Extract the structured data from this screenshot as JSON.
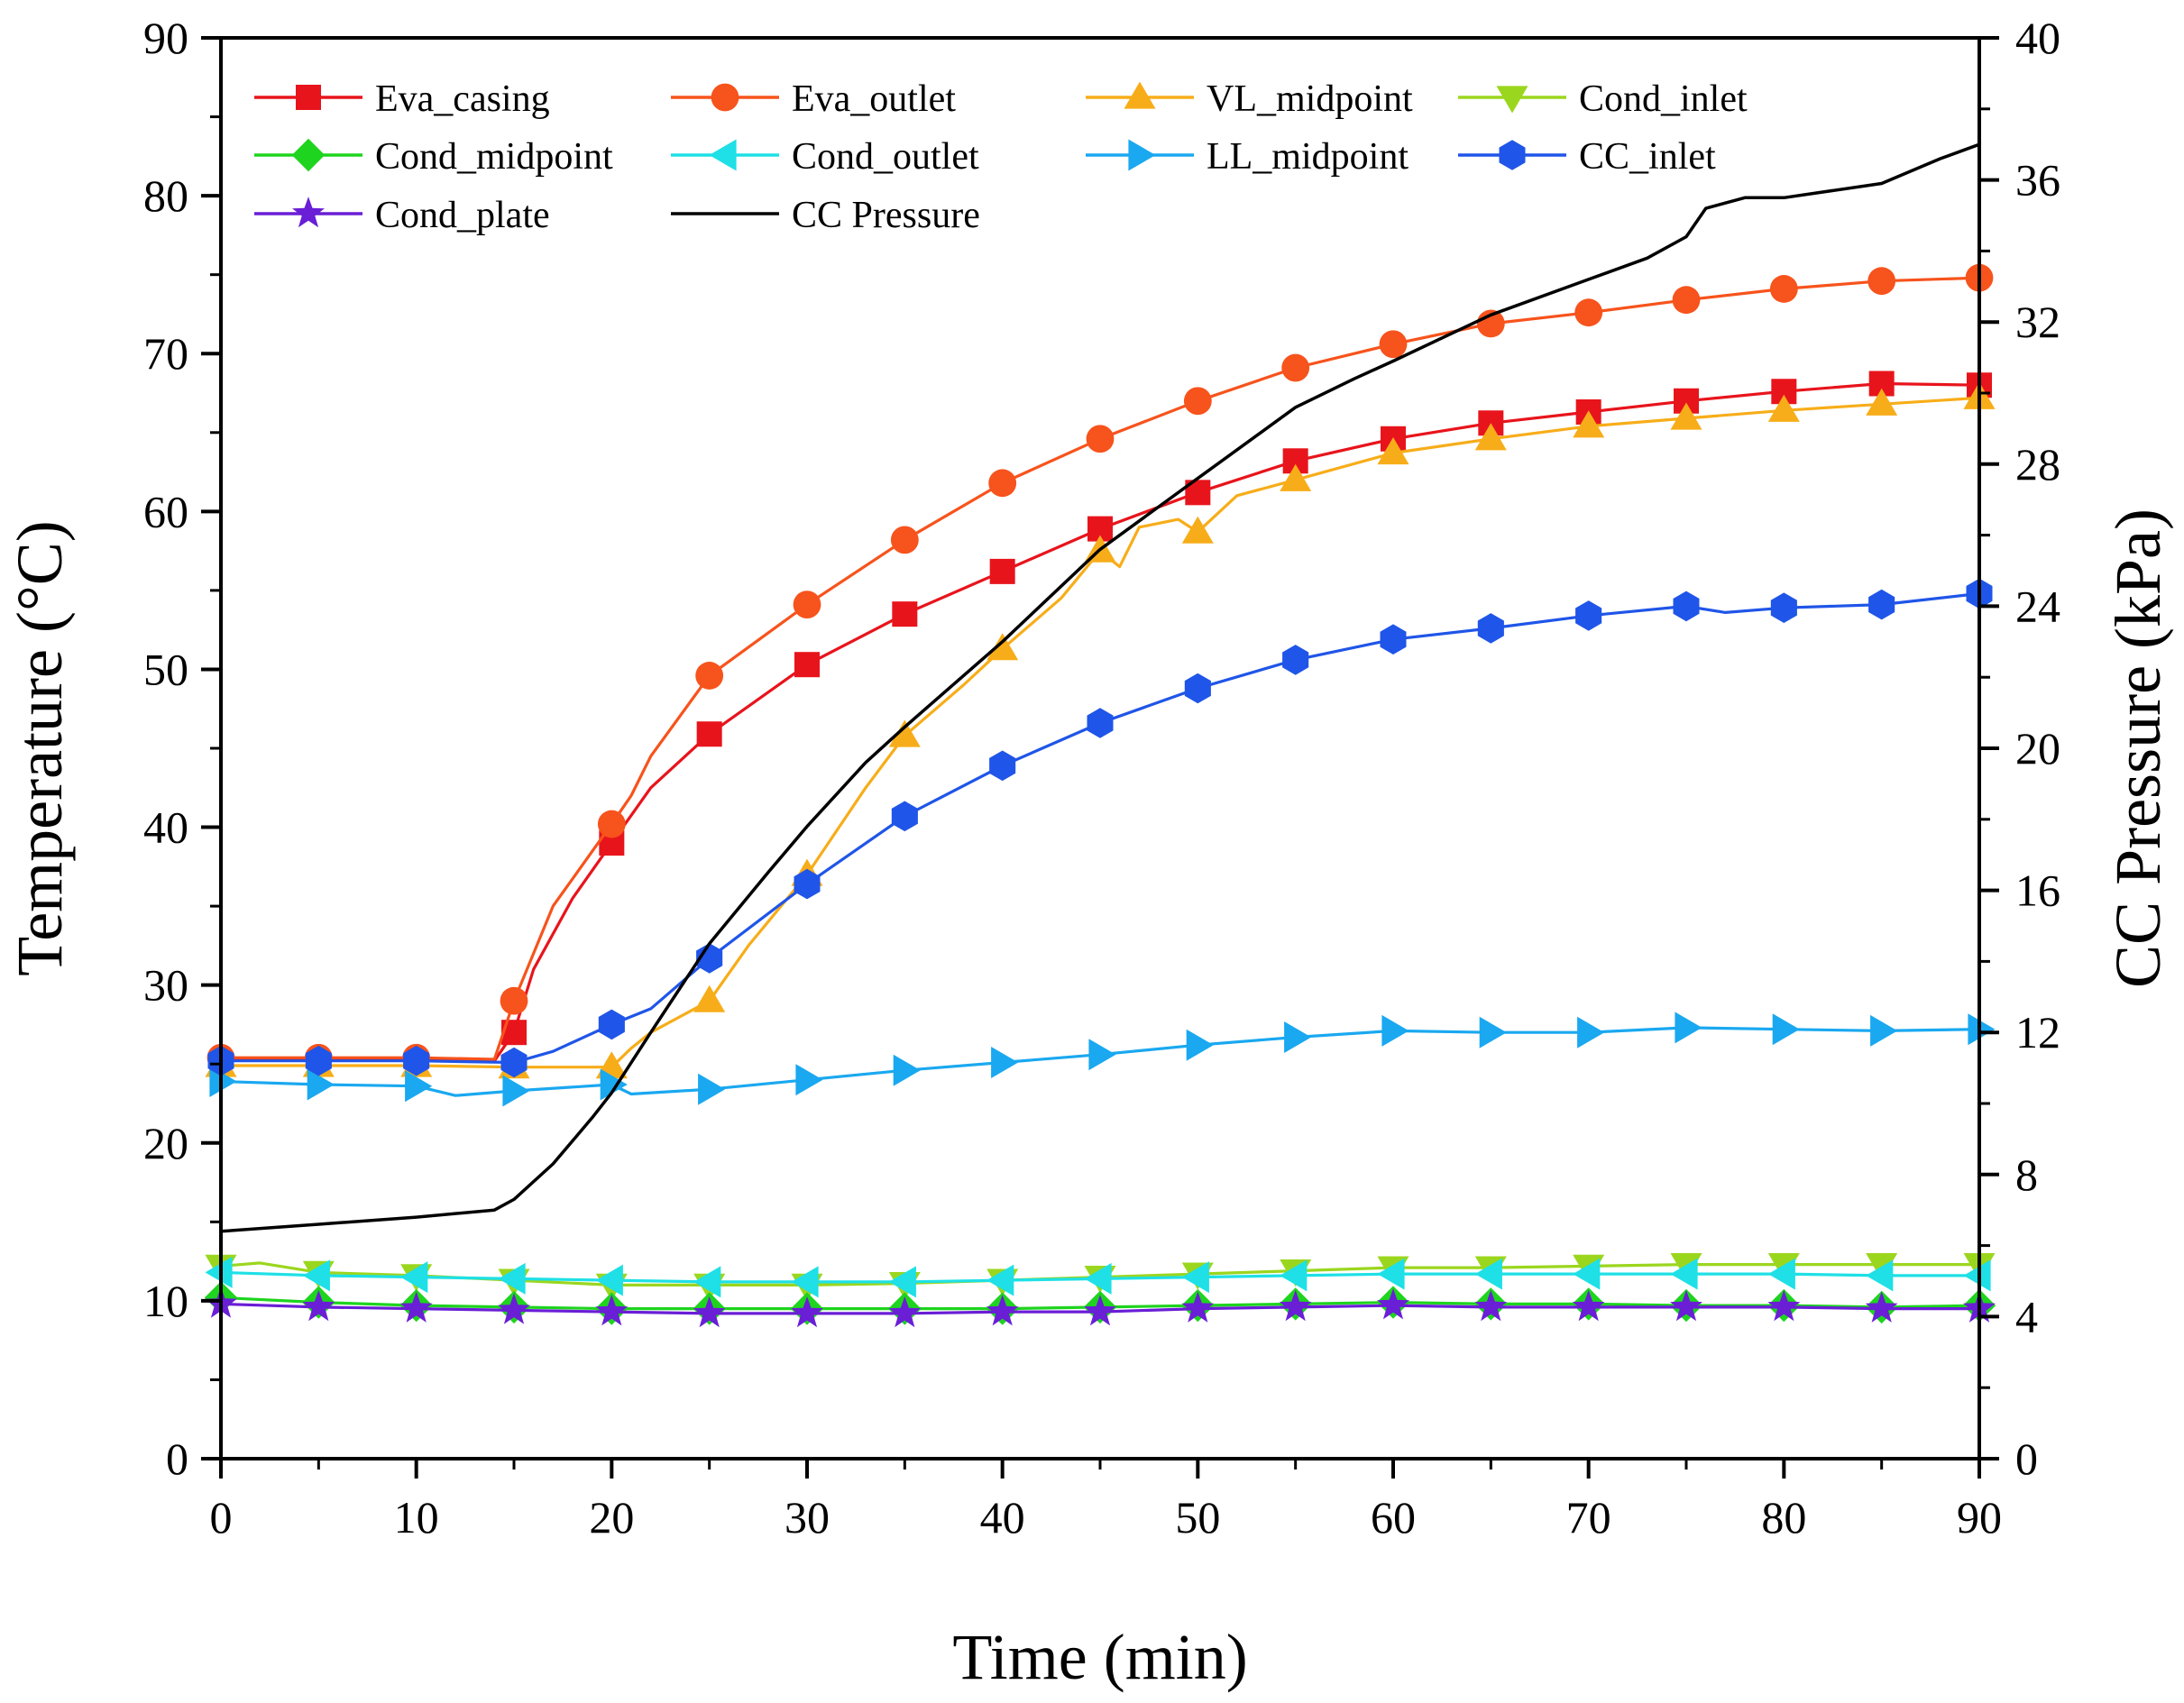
{
  "chart_data": {
    "type": "line",
    "title": "",
    "xlabel": "Time (min)",
    "ylabel": "Temperature (°C)",
    "y2label": "CC Pressure (kPa)",
    "xlim": [
      0,
      90
    ],
    "ylim": [
      0,
      90
    ],
    "y2lim": [
      0,
      40
    ],
    "x_ticks": [
      "0",
      "10",
      "20",
      "30",
      "40",
      "50",
      "60",
      "70",
      "80",
      "90"
    ],
    "y_ticks": [
      "0",
      "10",
      "20",
      "30",
      "40",
      "50",
      "60",
      "70",
      "80",
      "90"
    ],
    "y2_ticks": [
      "0",
      "4",
      "8",
      "12",
      "16",
      "20",
      "24",
      "28",
      "32",
      "36",
      "40"
    ],
    "grid": false,
    "legend_position": "top-left",
    "series": [
      {
        "name": "Eva_casing",
        "color": "#e8141c",
        "marker": "square",
        "axis": "left",
        "x": [
          0,
          5,
          10,
          14,
          15,
          16,
          18,
          20,
          22,
          25,
          30,
          35,
          40,
          45,
          50,
          55,
          60,
          65,
          70,
          75,
          80,
          85,
          90
        ],
        "y": [
          25.3,
          25.3,
          25.3,
          25.2,
          27.0,
          31.0,
          35.5,
          39.0,
          42.5,
          45.9,
          50.3,
          53.5,
          56.2,
          58.9,
          61.2,
          63.2,
          64.6,
          65.6,
          66.3,
          67.0,
          67.6,
          68.1,
          68.0
        ],
        "marker_x": [
          15,
          20,
          25,
          30,
          35,
          40,
          45,
          50,
          55,
          60,
          65,
          70,
          75,
          80,
          85,
          90
        ]
      },
      {
        "name": "Eva_outlet",
        "color": "#f7531c",
        "marker": "circle",
        "axis": "left",
        "x": [
          0,
          5,
          10,
          14,
          15,
          17,
          20,
          21,
          22,
          25,
          30,
          35,
          40,
          45,
          50,
          55,
          60,
          65,
          70,
          75,
          80,
          85,
          90
        ],
        "y": [
          25.4,
          25.4,
          25.4,
          25.3,
          29.0,
          35.0,
          40.2,
          42.0,
          44.5,
          49.6,
          54.1,
          58.2,
          61.8,
          64.6,
          67.0,
          69.1,
          70.6,
          71.9,
          72.6,
          73.4,
          74.1,
          74.6,
          74.8
        ],
        "marker_x": [
          0,
          5,
          10,
          15,
          20,
          25,
          30,
          35,
          40,
          45,
          50,
          55,
          60,
          65,
          70,
          75,
          80,
          85,
          90
        ]
      },
      {
        "name": "VL_midpoint",
        "color": "#f7ad19",
        "marker": "triangle-up",
        "axis": "left",
        "x": [
          0,
          5,
          10,
          15,
          19,
          20,
          21,
          22,
          25,
          27,
          30,
          33,
          35,
          38,
          40,
          43,
          45,
          46,
          47,
          49,
          50,
          52,
          55,
          60,
          65,
          70,
          75,
          80,
          85,
          90
        ],
        "y": [
          24.9,
          24.9,
          24.9,
          24.8,
          24.8,
          24.8,
          26.0,
          27.0,
          29.0,
          32.5,
          37.0,
          42.5,
          45.8,
          49.0,
          51.3,
          54.5,
          57.5,
          56.5,
          59.0,
          59.5,
          58.7,
          61.0,
          62.0,
          63.7,
          64.6,
          65.4,
          65.9,
          66.4,
          66.8,
          67.2
        ],
        "marker_x": [
          0,
          5,
          10,
          15,
          20,
          25,
          30,
          35,
          40,
          45,
          50,
          55,
          60,
          65,
          70,
          75,
          80,
          85,
          90
        ]
      },
      {
        "name": "Cond_inlet",
        "color": "#9bd61e",
        "marker": "triangle-down",
        "axis": "left",
        "x": [
          0,
          2,
          5,
          10,
          15,
          20,
          25,
          30,
          35,
          40,
          45,
          50,
          55,
          60,
          65,
          70,
          75,
          80,
          85,
          90
        ],
        "y": [
          12.2,
          12.4,
          11.8,
          11.6,
          11.3,
          11.0,
          11.0,
          11.0,
          11.1,
          11.3,
          11.5,
          11.7,
          11.9,
          12.1,
          12.1,
          12.2,
          12.3,
          12.3,
          12.3,
          12.3
        ],
        "marker_x": [
          0,
          5,
          10,
          15,
          20,
          25,
          30,
          35,
          40,
          45,
          50,
          55,
          60,
          65,
          70,
          75,
          80,
          85,
          90
        ]
      },
      {
        "name": "Cond_midpoint",
        "color": "#1ed41e",
        "marker": "diamond",
        "axis": "left",
        "x": [
          0,
          5,
          10,
          15,
          20,
          25,
          30,
          35,
          40,
          45,
          50,
          55,
          60,
          65,
          70,
          75,
          80,
          85,
          90
        ],
        "y": [
          10.2,
          9.9,
          9.7,
          9.6,
          9.5,
          9.5,
          9.5,
          9.5,
          9.5,
          9.6,
          9.7,
          9.8,
          9.9,
          9.8,
          9.8,
          9.7,
          9.7,
          9.6,
          9.7
        ],
        "marker_x": [
          0,
          5,
          10,
          15,
          20,
          25,
          30,
          35,
          40,
          45,
          50,
          55,
          60,
          65,
          70,
          75,
          80,
          85,
          90
        ]
      },
      {
        "name": "Cond_outlet",
        "color": "#1ee0e6",
        "marker": "triangle-left",
        "axis": "left",
        "x": [
          0,
          5,
          10,
          15,
          20,
          25,
          30,
          35,
          40,
          45,
          50,
          55,
          60,
          65,
          70,
          75,
          80,
          85,
          90
        ],
        "y": [
          11.8,
          11.6,
          11.5,
          11.4,
          11.3,
          11.2,
          11.2,
          11.2,
          11.3,
          11.4,
          11.5,
          11.6,
          11.7,
          11.7,
          11.7,
          11.7,
          11.7,
          11.6,
          11.6
        ],
        "marker_x": [
          0,
          5,
          10,
          15,
          20,
          25,
          30,
          35,
          40,
          45,
          50,
          55,
          60,
          65,
          70,
          75,
          80,
          85,
          90
        ]
      },
      {
        "name": "LL_midpoint",
        "color": "#1aa8f0",
        "marker": "triangle-right",
        "axis": "left",
        "x": [
          0,
          5,
          10,
          12,
          15,
          20,
          21,
          25,
          30,
          35,
          40,
          45,
          50,
          55,
          60,
          65,
          70,
          75,
          80,
          85,
          90
        ],
        "y": [
          23.9,
          23.7,
          23.6,
          23.0,
          23.3,
          23.7,
          23.1,
          23.4,
          24.0,
          24.6,
          25.1,
          25.6,
          26.2,
          26.7,
          27.1,
          27.0,
          27.0,
          27.3,
          27.2,
          27.1,
          27.2
        ],
        "marker_x": [
          0,
          5,
          10,
          15,
          20,
          25,
          30,
          35,
          40,
          45,
          50,
          55,
          60,
          65,
          70,
          75,
          80,
          85,
          90
        ]
      },
      {
        "name": "CC_inlet",
        "color": "#1f55e8",
        "marker": "hexagon",
        "axis": "left",
        "x": [
          0,
          5,
          10,
          15,
          17,
          20,
          22,
          25,
          30,
          35,
          40,
          45,
          50,
          55,
          60,
          65,
          70,
          75,
          77,
          80,
          85,
          90
        ],
        "y": [
          25.2,
          25.2,
          25.2,
          25.1,
          25.8,
          27.5,
          28.5,
          31.7,
          36.4,
          40.7,
          43.9,
          46.6,
          48.8,
          50.6,
          51.9,
          52.6,
          53.4,
          54.0,
          53.6,
          53.9,
          54.1,
          54.8
        ],
        "marker_x": [
          0,
          5,
          10,
          15,
          20,
          25,
          30,
          35,
          40,
          45,
          50,
          55,
          60,
          65,
          70,
          75,
          80,
          85,
          90
        ]
      },
      {
        "name": "Cond_plate",
        "color": "#6a1ed6",
        "marker": "star",
        "axis": "left",
        "x": [
          0,
          5,
          10,
          15,
          20,
          25,
          30,
          35,
          40,
          45,
          50,
          55,
          60,
          65,
          70,
          75,
          80,
          85,
          90
        ],
        "y": [
          9.8,
          9.6,
          9.5,
          9.4,
          9.3,
          9.2,
          9.2,
          9.2,
          9.3,
          9.3,
          9.5,
          9.6,
          9.7,
          9.6,
          9.6,
          9.6,
          9.6,
          9.5,
          9.5
        ],
        "marker_x": [
          0,
          5,
          10,
          15,
          20,
          25,
          30,
          35,
          40,
          45,
          50,
          55,
          60,
          65,
          70,
          75,
          80,
          85,
          90
        ]
      },
      {
        "name": "CC Pressure",
        "color": "#000000",
        "marker": "none",
        "axis": "right",
        "x": [
          0,
          5,
          10,
          14,
          15,
          17,
          19,
          20,
          22,
          25,
          28,
          30,
          33,
          35,
          40,
          45,
          50,
          55,
          58,
          60,
          65,
          70,
          73,
          75,
          76,
          78,
          80,
          85,
          88,
          90
        ],
        "y": [
          6.4,
          6.6,
          6.8,
          7.0,
          7.3,
          8.3,
          9.6,
          10.3,
          12.0,
          14.5,
          16.5,
          17.8,
          19.6,
          20.6,
          23.0,
          25.6,
          27.6,
          29.6,
          30.4,
          30.9,
          32.2,
          33.2,
          33.8,
          34.4,
          35.2,
          35.5,
          35.5,
          35.9,
          36.6,
          37.0
        ],
        "marker_x": []
      }
    ]
  }
}
